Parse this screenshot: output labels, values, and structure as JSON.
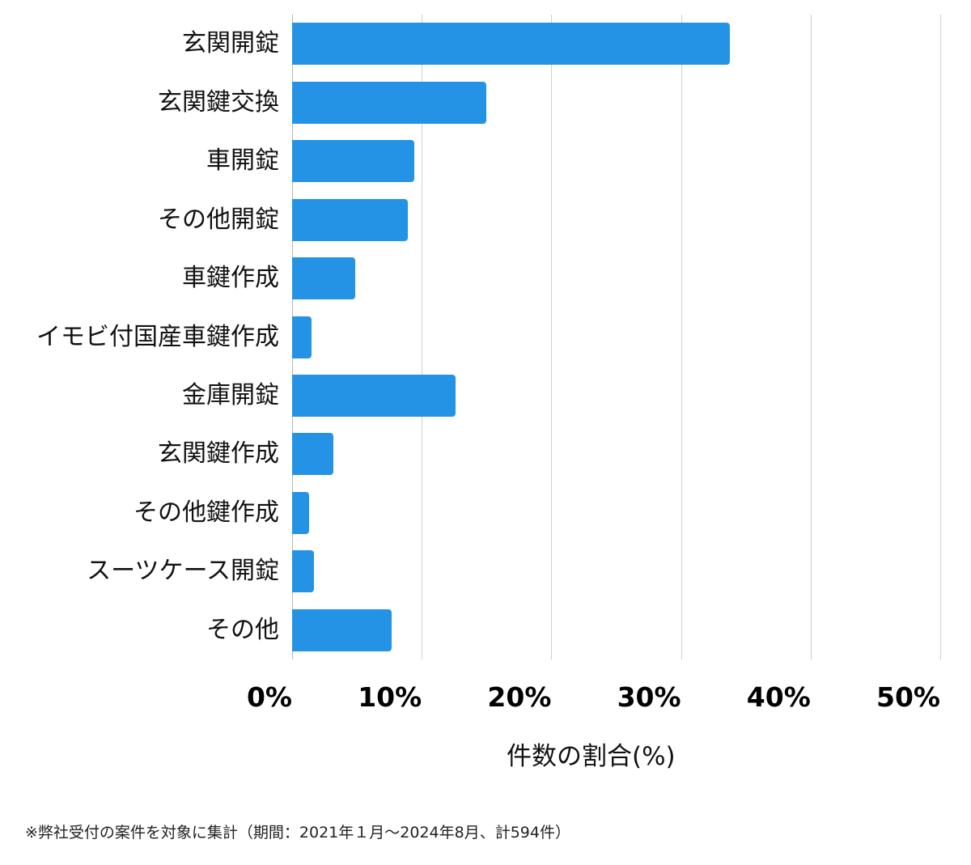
{
  "chart_data": {
    "type": "bar",
    "orientation": "horizontal",
    "title": "",
    "categories": [
      "玄関開錠",
      "玄関鍵交換",
      "車開錠",
      "その他開錠",
      "車鍵作成",
      "イモビ付国産車鍵作成",
      "金庫開錠",
      "玄関鍵作成",
      "その他鍵作成",
      "スーツケース開錠",
      "その他"
    ],
    "values": [
      33.8,
      15.0,
      9.4,
      8.9,
      4.9,
      1.5,
      12.6,
      3.2,
      1.3,
      1.7,
      7.7
    ],
    "xlabel": "件数の割合(%)",
    "ylabel": "",
    "xlim": [
      0,
      50
    ],
    "xticks": [
      0,
      10,
      20,
      30,
      40,
      50
    ],
    "xtick_labels": [
      "0%",
      "10%",
      "20%",
      "30%",
      "40%",
      "50%"
    ],
    "grid": true,
    "legend": null,
    "bar_color": "#2593e5",
    "gridline_color": "#cfcfcf"
  },
  "axis": {
    "x_title": "件数の割合(%)"
  },
  "footnote": "※弊社受付の案件を対象に集計（期間：2021年１月～2024年8月、計594件）"
}
